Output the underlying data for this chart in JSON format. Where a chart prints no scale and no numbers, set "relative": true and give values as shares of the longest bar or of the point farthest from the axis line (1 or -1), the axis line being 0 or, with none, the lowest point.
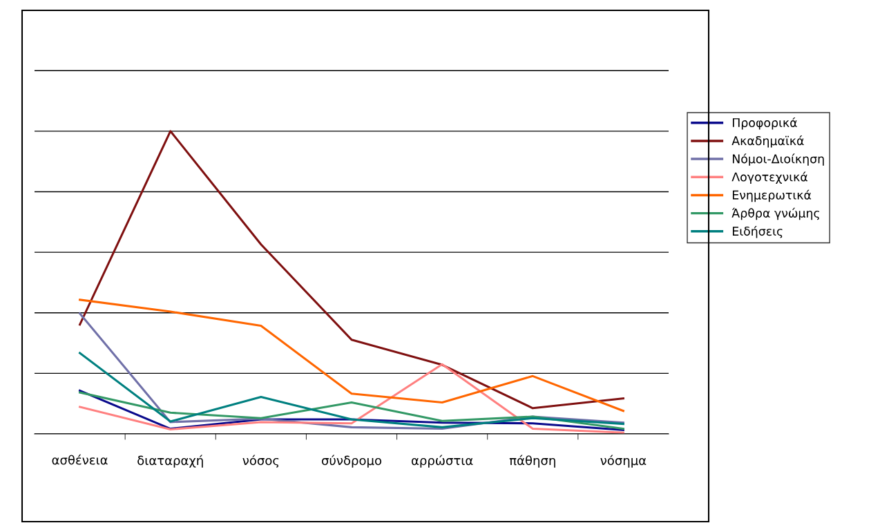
{
  "chart_data": {
    "type": "line",
    "relative": true,
    "grid": "y",
    "legend": "right",
    "marker": "none",
    "line_style": "solid",
    "categories": [
      "ασθένεια",
      "διαταραχή",
      "νόσος",
      "σύνδρομο",
      "αρρώστια",
      "πάθηση",
      "νόσημα"
    ],
    "series": [
      {
        "name": "Προφορικά",
        "color": "#0a0a8c",
        "values": [
          0.143,
          0.017,
          0.048,
          0.048,
          0.037,
          0.035,
          0.013
        ]
      },
      {
        "name": "Ακαδημαϊκά",
        "color": "#7f1010",
        "values": [
          0.361,
          1,
          0.626,
          0.311,
          0.228,
          0.085,
          0.117
        ]
      },
      {
        "name": "Νόμοι-Διοίκηση",
        "color": "#7070a8",
        "values": [
          0.398,
          0.039,
          0.05,
          0.022,
          0.017,
          0.057,
          0.037
        ]
      },
      {
        "name": "Λογοτεχνικά",
        "color": "#ff8080",
        "values": [
          0.089,
          0.015,
          0.039,
          0.035,
          0.23,
          0.017,
          0.004
        ]
      },
      {
        "name": "Ενημερωτικά",
        "color": "#ff6600",
        "values": [
          0.443,
          0.404,
          0.357,
          0.133,
          0.104,
          0.191,
          0.076
        ]
      },
      {
        "name": "Άρθρα γνώμης",
        "color": "#339966",
        "values": [
          0.137,
          0.07,
          0.052,
          0.104,
          0.043,
          0.057,
          0.017
        ]
      },
      {
        "name": "Ειδήσεις",
        "color": "#008080",
        "values": [
          0.267,
          0.041,
          0.122,
          0.048,
          0.022,
          0.052,
          0.033
        ]
      }
    ]
  }
}
